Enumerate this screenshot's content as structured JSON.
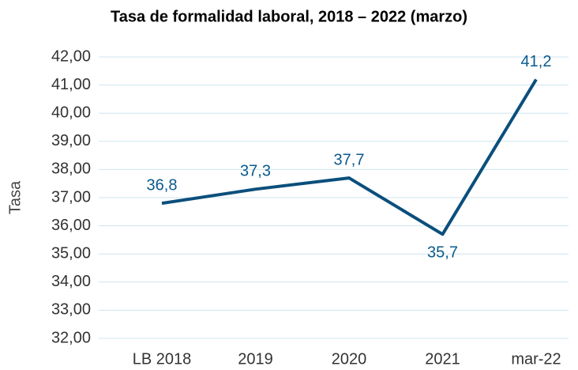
{
  "chart_data": {
    "type": "line",
    "title": "Tasa de formalidad laboral, 2018 – 2022 (marzo)",
    "y_label": "Tasa",
    "categories": [
      "LB 2018",
      "2019",
      "2020",
      "2021",
      "mar-22"
    ],
    "series": [
      {
        "name": "Tasa",
        "color": "#0b4f7c",
        "values": [
          36.8,
          37.3,
          37.7,
          35.7,
          41.2
        ],
        "value_labels": [
          "36,8",
          "37,3",
          "37,7",
          "35,7",
          "41,2"
        ]
      }
    ],
    "ylim": [
      32,
      42
    ],
    "yticks": [
      {
        "value": 32,
        "label": "32,00"
      },
      {
        "value": 33,
        "label": "33,00"
      },
      {
        "value": 34,
        "label": "34,00"
      },
      {
        "value": 35,
        "label": "35,00"
      },
      {
        "value": 36,
        "label": "36,00"
      },
      {
        "value": 37,
        "label": "37,00"
      },
      {
        "value": 38,
        "label": "38,00"
      },
      {
        "value": 39,
        "label": "39,00"
      },
      {
        "value": 40,
        "label": "40,00"
      },
      {
        "value": 41,
        "label": "41,00"
      },
      {
        "value": 42,
        "label": "42,00"
      }
    ],
    "grid": true
  }
}
